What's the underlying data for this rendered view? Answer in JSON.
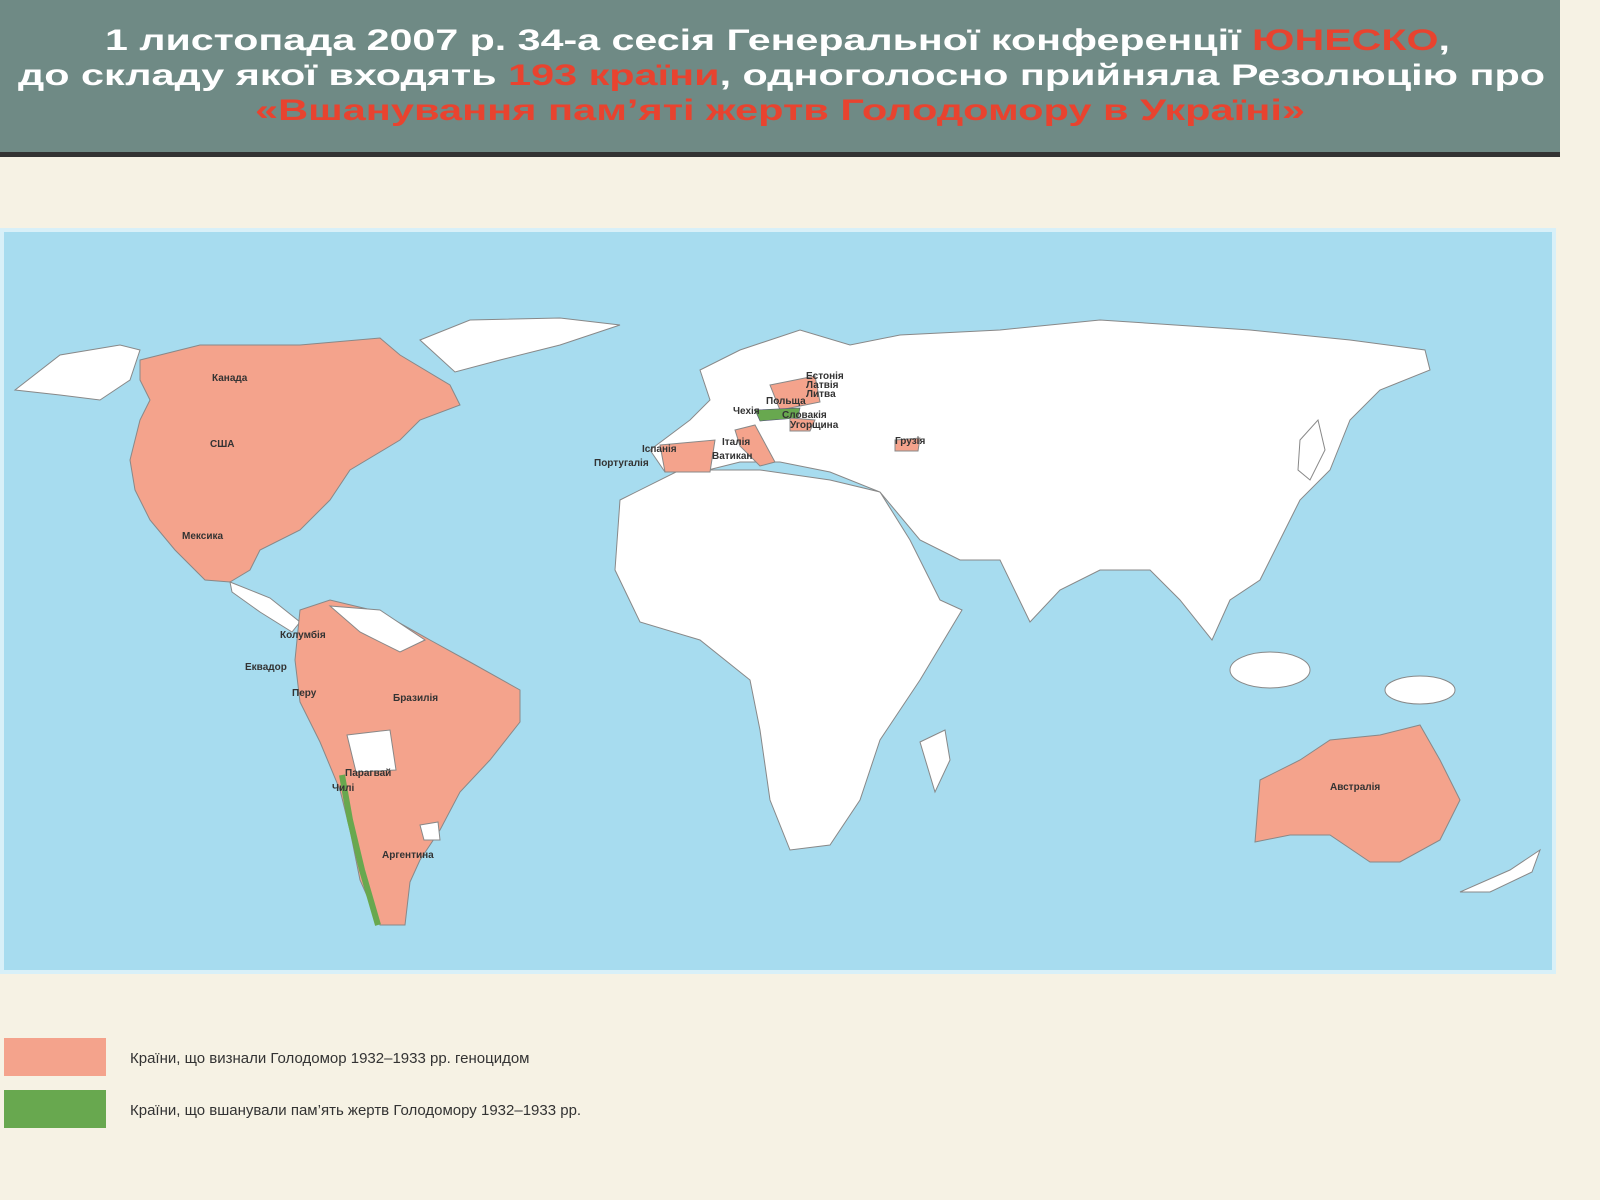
{
  "header": {
    "lines": [
      [
        "1 листопада 2007 р. 34-а сесія Генеральної конференції ",
        "ЮНЕСКО",
        ","
      ],
      [
        "до складу якої входять ",
        "193 країни",
        ", одноголосно прийняла Резолюцію про"
      ],
      [
        "«Вшанування пам’яті жертв Голодомору в Україні»"
      ]
    ]
  },
  "map": {
    "labels": [
      "Канада",
      "США",
      "Мексика",
      "Колумбія",
      "Еквадор",
      "Перу",
      "Бразилія",
      "Парагвай",
      "Чилі",
      "Аргентина",
      "Іспанія",
      "Португалія",
      "Італія",
      "Ватикан",
      "Естонія",
      "Латвія",
      "Литва",
      "Польща",
      "Чехія",
      "Словакія",
      "Угорщина",
      "Грузія",
      "Австралія"
    ]
  },
  "legend": {
    "items": [
      {
        "color": "#f4a38c",
        "label": "Країни, що визнали Голодомор 1932–1933 рр. геноцидом"
      },
      {
        "color": "#68a84f",
        "label": "Країни, що вшанували пам’ять жертв Голодомору 1932–1933 рр."
      }
    ]
  }
}
